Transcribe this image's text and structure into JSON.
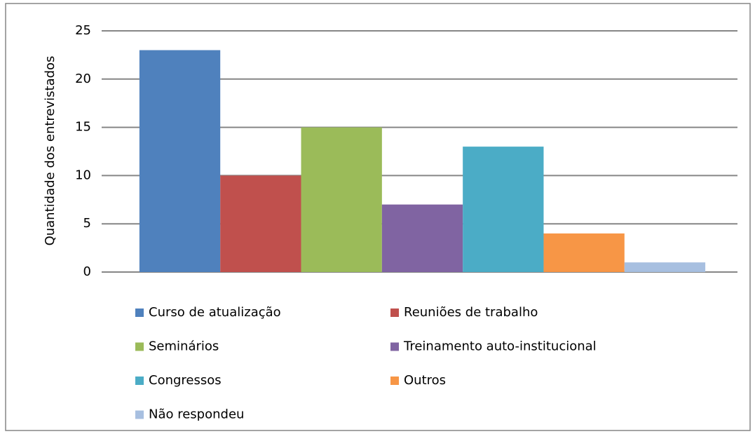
{
  "chart_data": {
    "type": "bar",
    "y_label": "Quantidade dos entrevistados",
    "categories": [
      null
    ],
    "series": [
      {
        "name": "Curso de atualização",
        "color": "#4f81bd",
        "values": [
          23
        ]
      },
      {
        "name": "Reuniões de trabalho",
        "color": "#c0504d",
        "values": [
          10
        ]
      },
      {
        "name": "Seminários",
        "color": "#9bbb59",
        "values": [
          15
        ]
      },
      {
        "name": "Treinamento auto-institucional",
        "color": "#8064a2",
        "values": [
          7
        ]
      },
      {
        "name": "Congressos",
        "color": "#4bacc6",
        "values": [
          13
        ]
      },
      {
        "name": "Outros",
        "color": "#f79646",
        "values": [
          4
        ]
      },
      {
        "name": "Não respondeu",
        "color": "#a7bfe0",
        "values": [
          1
        ]
      }
    ],
    "ylim": [
      0,
      25
    ],
    "yticks": [
      0,
      5,
      10,
      15,
      20,
      25
    ],
    "grid": true,
    "legend": "bottom"
  }
}
